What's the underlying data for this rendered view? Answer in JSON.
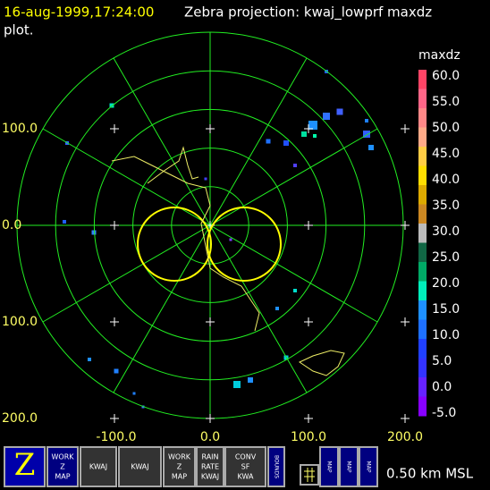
{
  "header": {
    "timestamp": "16-aug-1999,17:24:00",
    "title": "Zebra projection: kwaj_lowprf maxdz",
    "title_cont": "plot."
  },
  "y_labels": [
    "100.0",
    "0.0",
    "100.0",
    "200.0"
  ],
  "x_labels": [
    "-100.0",
    "0.0",
    "100.0",
    "200.0"
  ],
  "colorbar": {
    "title": "maxdz",
    "labels": [
      "60.0",
      "55.0",
      "50.0",
      "45.0",
      "40.0",
      "35.0",
      "30.0",
      "25.0",
      "20.0",
      "15.0",
      "10.0",
      "5.0",
      "0.0",
      "-5.0"
    ]
  },
  "toolbar": {
    "buttons": [
      {
        "lines": [
          "Z"
        ]
      },
      {
        "lines": [
          "WORK",
          "Z",
          "MAP"
        ]
      },
      {
        "lines": [
          "KWAJ"
        ]
      },
      {
        "lines": [
          "KWAJ"
        ]
      },
      {
        "lines": [
          "WORK",
          "Z",
          "MAP"
        ]
      },
      {
        "lines": [
          "RAIN",
          "RATE",
          "KWAJ"
        ]
      },
      {
        "lines": [
          "CONV",
          "SF",
          "KWA"
        ]
      },
      {
        "lines": [
          "BOUNDS"
        ]
      },
      {
        "lines": [
          "MAP"
        ]
      },
      {
        "lines": [
          "MAP"
        ]
      },
      {
        "lines": [
          "MAP"
        ]
      }
    ],
    "altitude": "0.50 km MSL"
  }
}
